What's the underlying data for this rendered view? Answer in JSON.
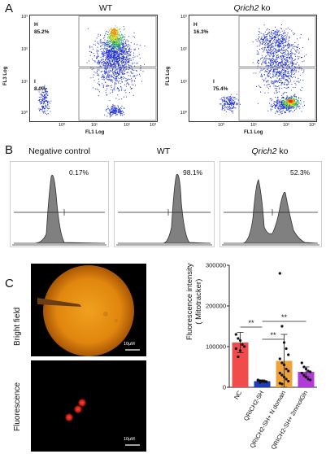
{
  "panels": {
    "a": "A",
    "b": "B",
    "c": "C"
  },
  "panel_a": {
    "plots": [
      {
        "title": "WT",
        "italic": false,
        "h_label": "H",
        "h_pct": "85.2%",
        "i_label": "I",
        "i_pct": "8.0%",
        "ylabel": "FL3 Log",
        "xlabel": "FL1 Log"
      },
      {
        "title": "Qrich2 ko",
        "title_italic_part": "Qrich2",
        "title_plain_part": " ko",
        "h_label": "H",
        "h_pct": "16.3%",
        "i_label": "I",
        "i_pct": "75.4%",
        "ylabel": "FL3 Log",
        "xlabel": "FL1 Log"
      }
    ],
    "y_ticks": [
      "10³",
      "10²",
      "10¹",
      "10⁰"
    ],
    "x_ticks": [
      "10⁰",
      "10¹",
      "10²",
      "10³"
    ]
  },
  "panel_b": {
    "histograms": [
      {
        "title": "Negative control",
        "pct": "0.17%"
      },
      {
        "title": "WT",
        "pct": "98.1%"
      },
      {
        "title_italic_part": "Qrich2",
        "title_plain_part": " ko",
        "pct": "52.3%"
      }
    ]
  },
  "panel_c": {
    "image_labels": [
      "Bright field",
      "Fluorescence"
    ],
    "scale_bar": "10μM"
  },
  "chart_data": {
    "type": "bar",
    "categories": [
      "NC",
      "QRICH2-SH",
      "QRICH2-SH+ N domain",
      "QRICH2-SH+ 2mmolGln"
    ],
    "values": [
      110000,
      15000,
      65000,
      38000
    ],
    "errors": [
      25000,
      3000,
      65000,
      12000
    ],
    "ylabel": "Fluorescence intensity\n( Mitotracker)",
    "ylabel_line1": "Fluorescence intensity",
    "ylabel_line2": "( Mitotracker)",
    "ylim": [
      0,
      300000
    ],
    "y_ticks": [
      "0",
      "100000",
      "200000",
      "300000"
    ],
    "y_tick_values": [
      0,
      100000,
      200000,
      300000
    ],
    "colors": [
      "#f24b4b",
      "#1d3db8",
      "#f0a23a",
      "#b23ad8"
    ],
    "significance": [
      {
        "from": 0,
        "to": 1,
        "label": "**"
      },
      {
        "from": 1,
        "to": 2,
        "label": "**"
      },
      {
        "from": 1,
        "to": 3,
        "label": "**"
      }
    ],
    "points": [
      [
        130000,
        120000,
        115000,
        105000,
        100000,
        95000,
        75000,
        90000
      ],
      [
        18000,
        16000,
        15000,
        14000,
        13000,
        17000,
        12000,
        16000,
        15000,
        14000
      ],
      [
        280000,
        150000,
        110000,
        95000,
        80000,
        70000,
        60000,
        55000,
        45000,
        40000,
        35000,
        30000,
        25000,
        20000,
        15000,
        10000,
        8000
      ],
      [
        60000,
        50000,
        45000,
        40000,
        38000,
        35000,
        30000,
        25000,
        20000,
        18000
      ]
    ]
  }
}
